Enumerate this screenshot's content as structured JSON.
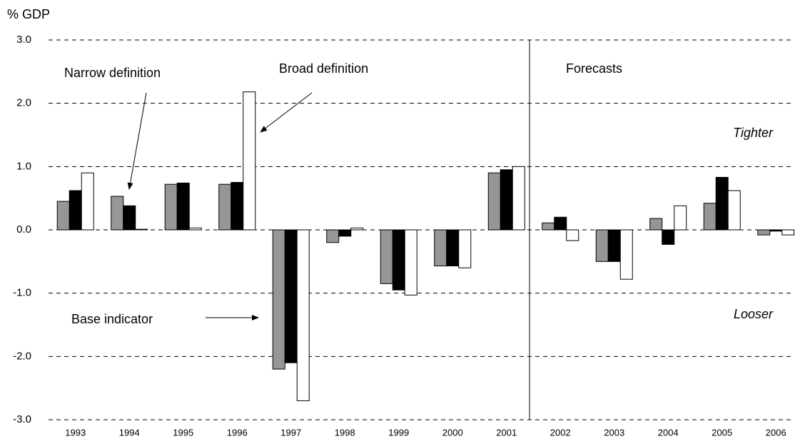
{
  "chart_data": {
    "type": "bar",
    "y_label": "% GDP",
    "categories": [
      "1993",
      "1994",
      "1995",
      "1996",
      "1997",
      "1998",
      "1999",
      "2000",
      "2001",
      "2002",
      "2003",
      "2004",
      "2005",
      "2006"
    ],
    "series": [
      {
        "name": "Base indicator",
        "color": "#969696",
        "values": [
          0.45,
          0.53,
          0.72,
          0.72,
          -2.2,
          -0.2,
          -0.85,
          -0.57,
          0.9,
          0.11,
          -0.5,
          0.18,
          0.42,
          -0.08
        ]
      },
      {
        "name": "Narrow definition",
        "color": "#000000",
        "values": [
          0.62,
          0.38,
          0.74,
          0.75,
          -2.1,
          -0.1,
          -0.95,
          -0.57,
          0.95,
          0.2,
          -0.5,
          -0.23,
          0.83,
          -0.02
        ]
      },
      {
        "name": "Broad definition",
        "color": "#ffffff",
        "values": [
          0.9,
          0.01,
          0.03,
          2.18,
          -2.7,
          0.03,
          -1.03,
          -0.6,
          1.0,
          -0.17,
          -0.78,
          0.38,
          0.62,
          -0.08
        ]
      }
    ],
    "annotations": [
      "Forecasts",
      "Tighter",
      "Looser"
    ],
    "ylim": [
      -3,
      3
    ],
    "yticks": [
      {
        "value": -3,
        "label": "-3.0"
      },
      {
        "value": -2,
        "label": "-2.0"
      },
      {
        "value": -1,
        "label": "-1.0"
      },
      {
        "value": 0,
        "label": "0.0"
      },
      {
        "value": 1,
        "label": "1.0"
      },
      {
        "value": 2,
        "label": "2.0"
      },
      {
        "value": 3,
        "label": "3.0"
      }
    ],
    "grid": true
  }
}
